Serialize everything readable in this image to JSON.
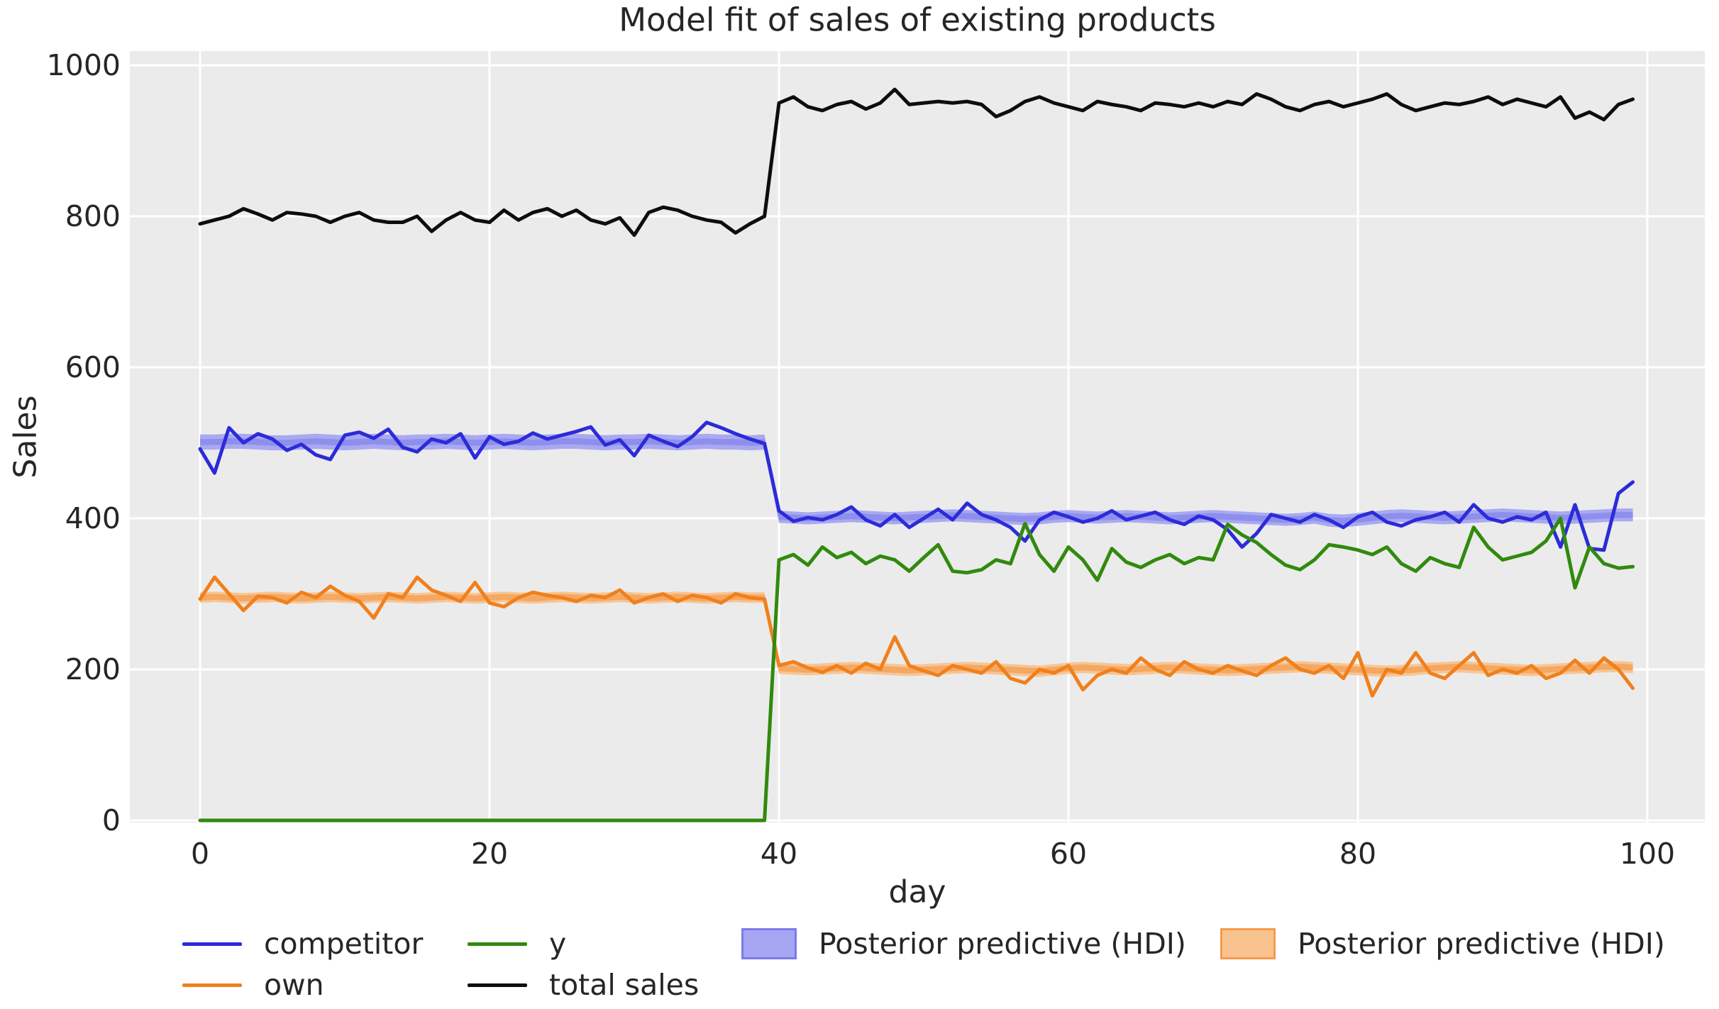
{
  "title": "Model fit of sales of existing products",
  "axes": {
    "x_label": "day",
    "y_label": "Sales",
    "x_ticks": [
      0,
      20,
      40,
      60,
      80,
      100
    ],
    "y_ticks": [
      0,
      200,
      400,
      600,
      800,
      1000
    ]
  },
  "legend": [
    {
      "label": "competitor",
      "type": "line",
      "color": "#2b2bd9"
    },
    {
      "label": "own",
      "type": "line",
      "color": "#f0801c"
    },
    {
      "label": "y",
      "type": "line",
      "color": "#318a0e"
    },
    {
      "label": "total sales",
      "type": "line",
      "color": "#0d0d0d"
    },
    {
      "label": "Posterior predictive (HDI)",
      "type": "patch",
      "color": "#a5a5f2",
      "border": "#7b7bea"
    },
    {
      "label": "Posterior predictive (HDI)",
      "type": "patch",
      "color": "#f9c38f",
      "border": "#f79a4b"
    }
  ],
  "chart_data": {
    "type": "line",
    "title": "Model fit of sales of existing products",
    "xlabel": "day",
    "ylabel": "Sales",
    "xlim": [
      0,
      100
    ],
    "ylim": [
      0,
      1000
    ],
    "grid": true,
    "plot_background": "#ebebeb",
    "grid_color": "#ffffff",
    "legend_position": "below",
    "days": [
      0,
      1,
      2,
      3,
      4,
      5,
      6,
      7,
      8,
      9,
      10,
      11,
      12,
      13,
      14,
      15,
      16,
      17,
      18,
      19,
      20,
      21,
      22,
      23,
      24,
      25,
      26,
      27,
      28,
      29,
      30,
      31,
      32,
      33,
      34,
      35,
      36,
      37,
      38,
      39,
      40,
      41,
      42,
      43,
      44,
      45,
      46,
      47,
      48,
      49,
      50,
      51,
      52,
      53,
      54,
      55,
      56,
      57,
      58,
      59,
      60,
      61,
      62,
      63,
      64,
      65,
      66,
      67,
      68,
      69,
      70,
      71,
      72,
      73,
      74,
      75,
      76,
      77,
      78,
      79,
      80,
      81,
      82,
      83,
      84,
      85,
      86,
      87,
      88,
      89,
      90,
      91,
      92,
      93,
      94,
      95,
      96,
      97,
      98,
      99
    ],
    "series": [
      {
        "name": "competitor",
        "color": "#2b2bd9",
        "values": [
          492,
          460,
          520,
          500,
          512,
          505,
          490,
          498,
          484,
          478,
          510,
          514,
          506,
          518,
          494,
          488,
          505,
          500,
          512,
          480,
          508,
          498,
          502,
          513,
          505,
          510,
          515,
          521,
          497,
          504,
          483,
          510,
          502,
          495,
          508,
          527,
          520,
          512,
          505,
          499,
          410,
          396,
          401,
          398,
          405,
          415,
          398,
          390,
          405,
          388,
          400,
          412,
          398,
          420,
          405,
          398,
          388,
          370,
          398,
          408,
          402,
          395,
          400,
          410,
          398,
          403,
          408,
          398,
          392,
          403,
          398,
          385,
          362,
          380,
          405,
          400,
          395,
          405,
          398,
          388,
          402,
          408,
          395,
          390,
          398,
          402,
          408,
          395,
          418,
          400,
          395,
          402,
          398,
          408,
          362,
          418,
          360,
          358,
          433,
          448
        ]
      },
      {
        "name": "own",
        "color": "#f0801c",
        "values": [
          293,
          322,
          300,
          278,
          297,
          295,
          288,
          302,
          295,
          310,
          298,
          290,
          268,
          300,
          295,
          322,
          305,
          298,
          290,
          315,
          288,
          283,
          295,
          302,
          298,
          295,
          290,
          298,
          295,
          305,
          288,
          295,
          300,
          290,
          298,
          295,
          288,
          300,
          295,
          293,
          205,
          210,
          202,
          196,
          205,
          195,
          208,
          200,
          243,
          205,
          198,
          192,
          205,
          200,
          195,
          210,
          188,
          182,
          200,
          195,
          205,
          173,
          192,
          200,
          195,
          215,
          200,
          192,
          210,
          200,
          195,
          205,
          198,
          192,
          205,
          215,
          200,
          195,
          205,
          188,
          222,
          165,
          200,
          195,
          222,
          195,
          188,
          205,
          222,
          192,
          200,
          195,
          205,
          188,
          195,
          212,
          195,
          215,
          200,
          175
        ]
      },
      {
        "name": "y",
        "color": "#318a0e",
        "values": [
          0,
          0,
          0,
          0,
          0,
          0,
          0,
          0,
          0,
          0,
          0,
          0,
          0,
          0,
          0,
          0,
          0,
          0,
          0,
          0,
          0,
          0,
          0,
          0,
          0,
          0,
          0,
          0,
          0,
          0,
          0,
          0,
          0,
          0,
          0,
          0,
          0,
          0,
          0,
          0,
          345,
          352,
          338,
          362,
          348,
          355,
          340,
          350,
          345,
          330,
          348,
          365,
          330,
          328,
          332,
          345,
          340,
          393,
          352,
          330,
          362,
          345,
          318,
          360,
          342,
          335,
          345,
          352,
          340,
          348,
          345,
          392,
          378,
          368,
          352,
          338,
          332,
          345,
          365,
          362,
          358,
          352,
          362,
          340,
          330,
          348,
          340,
          335,
          388,
          362,
          345,
          350,
          355,
          370,
          400,
          308,
          362,
          340,
          334,
          336
        ]
      },
      {
        "name": "total sales",
        "color": "#0d0d0d",
        "values": [
          790,
          795,
          800,
          810,
          803,
          795,
          805,
          803,
          800,
          792,
          800,
          805,
          795,
          792,
          792,
          800,
          780,
          795,
          805,
          795,
          792,
          808,
          795,
          805,
          810,
          800,
          808,
          795,
          790,
          798,
          775,
          805,
          812,
          808,
          800,
          795,
          792,
          778,
          790,
          800,
          950,
          958,
          945,
          940,
          948,
          952,
          942,
          950,
          968,
          948,
          950,
          952,
          950,
          952,
          948,
          932,
          940,
          952,
          958,
          950,
          945,
          940,
          952,
          948,
          945,
          940,
          950,
          948,
          945,
          950,
          945,
          952,
          948,
          962,
          955,
          945,
          940,
          948,
          952,
          945,
          950,
          955,
          962,
          948,
          940,
          945,
          950,
          948,
          952,
          958,
          948,
          955,
          950,
          945,
          958,
          930,
          938,
          928,
          948,
          955
        ]
      }
    ],
    "bands": [
      {
        "name": "Posterior predictive (HDI)",
        "color": "#a5a5f2",
        "inner_color": "#8b8bec",
        "lo": [
          491,
          491,
          492,
          492,
          491,
          490,
          490,
          491,
          492,
          491,
          490,
          491,
          492,
          491,
          490,
          491,
          491,
          492,
          491,
          490,
          491,
          492,
          491,
          490,
          491,
          492,
          492,
          491,
          490,
          491,
          491,
          492,
          491,
          490,
          491,
          492,
          491,
          491,
          490,
          491,
          394,
          393,
          392,
          393,
          394,
          395,
          394,
          393,
          392,
          393,
          394,
          395,
          396,
          395,
          394,
          393,
          392,
          391,
          392,
          394,
          395,
          394,
          393,
          394,
          395,
          394,
          393,
          392,
          393,
          394,
          395,
          394,
          393,
          392,
          391,
          390,
          391,
          393,
          389,
          388,
          390,
          392,
          394,
          395,
          394,
          393,
          392,
          393,
          394,
          395,
          396,
          395,
          394,
          393,
          392,
          393,
          394,
          395,
          396,
          396
        ],
        "hi": [
          511,
          511,
          512,
          512,
          511,
          510,
          510,
          511,
          512,
          511,
          510,
          511,
          512,
          511,
          510,
          511,
          511,
          512,
          511,
          510,
          511,
          512,
          511,
          510,
          511,
          512,
          512,
          511,
          510,
          511,
          511,
          512,
          511,
          510,
          511,
          512,
          511,
          511,
          510,
          511,
          410,
          409,
          408,
          409,
          410,
          411,
          410,
          409,
          408,
          409,
          410,
          411,
          412,
          411,
          410,
          409,
          408,
          407,
          408,
          410,
          411,
          410,
          409,
          410,
          411,
          410,
          409,
          408,
          409,
          410,
          411,
          410,
          409,
          408,
          407,
          406,
          407,
          409,
          406,
          405,
          407,
          409,
          411,
          412,
          411,
          410,
          409,
          410,
          411,
          412,
          413,
          412,
          411,
          410,
          409,
          410,
          411,
          412,
          413,
          413
        ]
      },
      {
        "name": "Posterior predictive (HDI)",
        "color": "#f9c38f",
        "inner_color": "#f3a45c",
        "lo": [
          288,
          289,
          288,
          287,
          288,
          289,
          288,
          287,
          288,
          289,
          288,
          287,
          288,
          289,
          288,
          287,
          288,
          289,
          288,
          287,
          288,
          289,
          288,
          287,
          288,
          289,
          288,
          287,
          288,
          289,
          288,
          287,
          288,
          289,
          288,
          287,
          288,
          289,
          288,
          288,
          194,
          193,
          192,
          193,
          194,
          195,
          194,
          193,
          192,
          191,
          192,
          193,
          194,
          195,
          194,
          193,
          192,
          191,
          190,
          192,
          194,
          195,
          194,
          193,
          192,
          193,
          194,
          195,
          194,
          193,
          192,
          191,
          192,
          193,
          194,
          195,
          196,
          195,
          194,
          193,
          192,
          191,
          190,
          191,
          192,
          194,
          195,
          196,
          195,
          194,
          193,
          192,
          191,
          192,
          193,
          194,
          195,
          196,
          196,
          195
        ],
        "hi": [
          302,
          303,
          302,
          301,
          302,
          303,
          302,
          301,
          302,
          303,
          302,
          301,
          302,
          303,
          302,
          301,
          302,
          303,
          302,
          301,
          302,
          303,
          302,
          301,
          302,
          303,
          302,
          301,
          302,
          303,
          302,
          301,
          302,
          303,
          302,
          301,
          302,
          303,
          302,
          302,
          209,
          208,
          207,
          208,
          209,
          210,
          209,
          208,
          207,
          206,
          207,
          208,
          209,
          210,
          209,
          208,
          207,
          206,
          205,
          207,
          209,
          210,
          209,
          208,
          207,
          208,
          209,
          210,
          209,
          208,
          207,
          206,
          207,
          208,
          209,
          210,
          211,
          210,
          209,
          208,
          207,
          206,
          205,
          206,
          207,
          209,
          210,
          211,
          210,
          209,
          208,
          207,
          206,
          207,
          208,
          209,
          210,
          211,
          211,
          210
        ]
      }
    ]
  }
}
